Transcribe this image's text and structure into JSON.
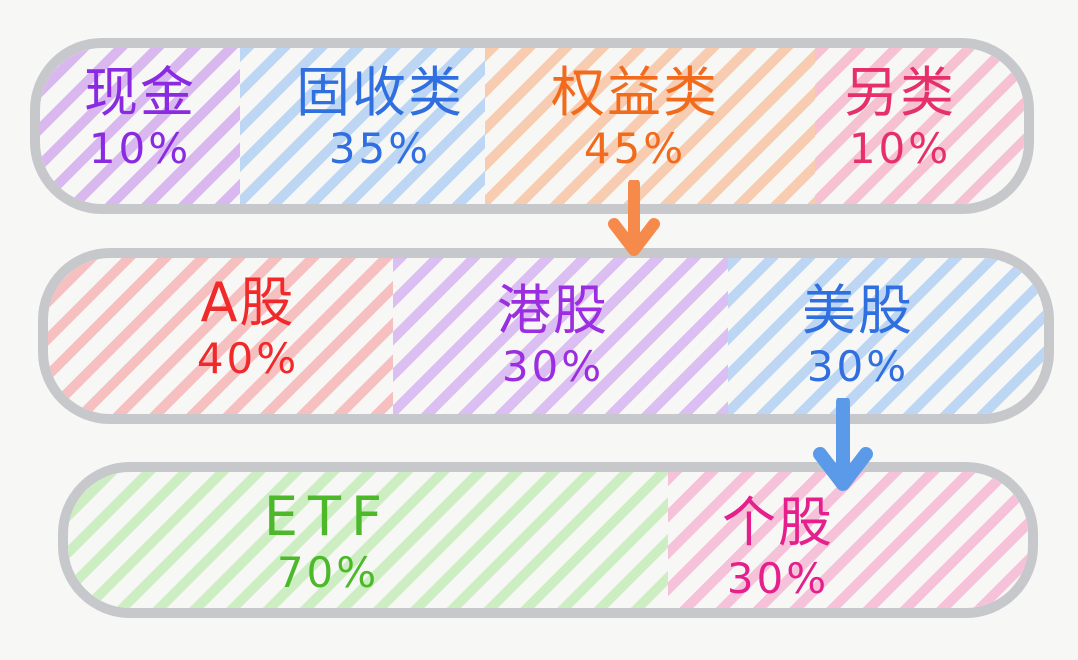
{
  "colors": {
    "border": "#c6c8cc",
    "background": "#f7f7f5",
    "purple": "#8a2be2",
    "blue": "#2f6fe0",
    "orange": "#f26a1b",
    "pink": "#e6306c",
    "red": "#f02a2a",
    "green": "#4cb82a",
    "magenta": "#e51f8c",
    "arrow_orange": "#f58a4a",
    "arrow_blue": "#5a9ae8"
  },
  "rows": [
    {
      "items": [
        {
          "label": "现金",
          "value": "10%",
          "color": "#8a2be2",
          "hatch": "#d9b8f0"
        },
        {
          "label": "固收类",
          "value": "35%",
          "color": "#2f6fe0",
          "hatch": "#bcd6f3"
        },
        {
          "label": "权益类",
          "value": "45%",
          "color": "#f26a1b",
          "hatch": "#f8ccb0"
        },
        {
          "label": "另类",
          "value": "10%",
          "color": "#e6306c",
          "hatch": "#f6c2d3"
        }
      ]
    },
    {
      "items": [
        {
          "label": "A股",
          "value": "40%",
          "color": "#f02a2a",
          "hatch": "#f6c0c0"
        },
        {
          "label": "港股",
          "value": "30%",
          "color": "#9b2ee0",
          "hatch": "#dcbff2"
        },
        {
          "label": "美股",
          "value": "30%",
          "color": "#2f6fe0",
          "hatch": "#bcd6f3"
        }
      ]
    },
    {
      "items": [
        {
          "label": "ETF",
          "value": "70%",
          "color": "#4cb82a",
          "hatch": "#cdeec2"
        },
        {
          "label": "个股",
          "value": "30%",
          "color": "#e51f8c",
          "hatch": "#f6c2da"
        }
      ]
    }
  ],
  "arrows": [
    {
      "from": "权益类",
      "to": "row-2",
      "color": "#f58a4a"
    },
    {
      "from": "美股",
      "to": "row-3",
      "color": "#5a9ae8"
    }
  ]
}
